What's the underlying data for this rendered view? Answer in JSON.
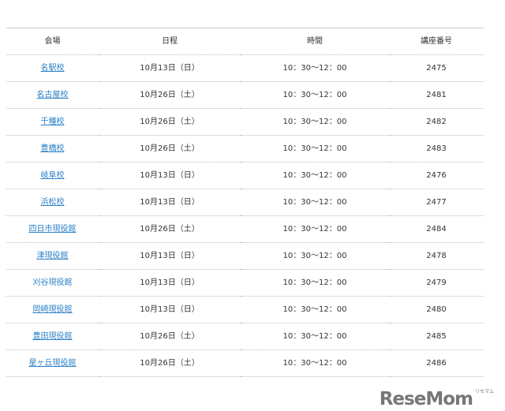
{
  "table": {
    "headers": [
      "会場",
      "日程",
      "時間",
      "講座番号"
    ],
    "rows": [
      {
        "venue": "名駅校",
        "date": "10月13日（日）",
        "time": "10：30～12：00",
        "code": "2475"
      },
      {
        "venue": "名古屋校",
        "date": "10月26日（土）",
        "time": "10：30～12：00",
        "code": "2481"
      },
      {
        "venue": "千種校",
        "date": "10月26日（土）",
        "time": "10：30～12：00",
        "code": "2482"
      },
      {
        "venue": "豊橋校",
        "date": "10月26日（土）",
        "time": "10：30～12：00",
        "code": "2483"
      },
      {
        "venue": "岐阜校",
        "date": "10月13日（日）",
        "time": "10：30～12：00",
        "code": "2476"
      },
      {
        "venue": "浜松校",
        "date": "10月13日（日）",
        "time": "10：30～12：00",
        "code": "2477"
      },
      {
        "venue": "四日市現役館",
        "date": "10月26日（土）",
        "time": "10：30～12：00",
        "code": "2484"
      },
      {
        "venue": "津現役館",
        "date": "10月13日（日）",
        "time": "10：30～12：00",
        "code": "2478"
      },
      {
        "venue": "刈谷現役館",
        "date": "10月13日（日）",
        "time": "10：30～12：00",
        "code": "2479"
      },
      {
        "venue": "岡崎現役館",
        "date": "10月13日（日）",
        "time": "10：30～12：00",
        "code": "2480"
      },
      {
        "venue": "豊田現役館",
        "date": "10月26日（土）",
        "time": "10：30～12：00",
        "code": "2485"
      },
      {
        "venue": "星ヶ丘現役館",
        "date": "10月26日（土）",
        "time": "10：30～12：00",
        "code": "2486"
      }
    ]
  },
  "watermark": {
    "text": "ReseMom",
    "ruby": "リセマム"
  },
  "colors": {
    "link": "#2a7fc6",
    "text": "#333333",
    "border": "#cccccc"
  }
}
